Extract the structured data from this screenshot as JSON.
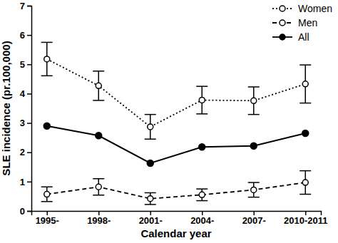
{
  "chart_data": {
    "type": "line",
    "x_label": "Calendar year",
    "y_label": "SLE incidence (pr.100,000)",
    "categories": [
      "1995-",
      "1998-",
      "2001-",
      "2004-",
      "2007-",
      "2010-2011"
    ],
    "ylim": [
      0,
      7
    ],
    "yticks": [
      0,
      1,
      2,
      3,
      4,
      5,
      6,
      7
    ],
    "grid": false,
    "legend": "top-right",
    "series": [
      {
        "name": "Women",
        "color": "#000000",
        "marker": "open-circle",
        "line_style": "dotted",
        "values": [
          5.18,
          4.27,
          2.87,
          3.78,
          3.76,
          4.33
        ],
        "errors": [
          0.57,
          0.5,
          0.42,
          0.47,
          0.47,
          0.65
        ]
      },
      {
        "name": "Men",
        "color": "#000000",
        "marker": "open-circle",
        "line_style": "dashed",
        "values": [
          0.57,
          0.82,
          0.42,
          0.55,
          0.72,
          0.97
        ],
        "errors": [
          0.25,
          0.28,
          0.2,
          0.2,
          0.25,
          0.4
        ]
      },
      {
        "name": "All",
        "color": "#000000",
        "marker": "filled-circle",
        "line_style": "solid",
        "values": [
          2.9,
          2.57,
          1.63,
          2.18,
          2.22,
          2.65
        ]
      }
    ]
  }
}
